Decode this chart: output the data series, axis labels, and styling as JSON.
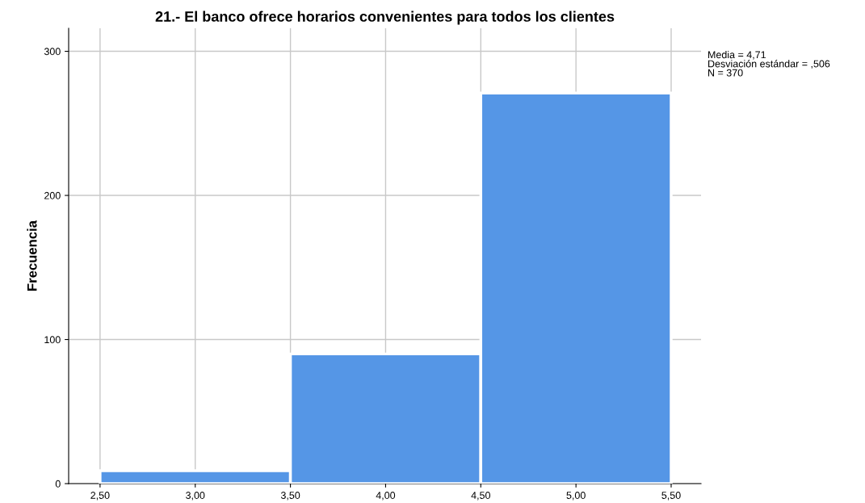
{
  "chart_data": {
    "type": "histogram",
    "title": "21.- El banco ofrece horarios convenientes para todos los clientes",
    "ylabel": "Frecuencia",
    "bins": [
      2.5,
      3.5,
      4.5,
      5.5
    ],
    "values": [
      9,
      90,
      271
    ],
    "color": "#5596e6",
    "xlim": [
      2.335,
      5.657
    ],
    "xticks": [
      {
        "value": 2.5,
        "label": "2,50"
      },
      {
        "value": 3.0,
        "label": "3,00"
      },
      {
        "value": 3.5,
        "label": "3,50"
      },
      {
        "value": 4.0,
        "label": "4,00"
      },
      {
        "value": 4.5,
        "label": "4,50"
      },
      {
        "value": 5.0,
        "label": "5,00"
      },
      {
        "value": 5.5,
        "label": "5,50"
      }
    ],
    "ylim": [
      0,
      316
    ],
    "yticks": [
      0,
      100,
      200,
      300
    ],
    "grid": true,
    "annotations": [
      "Media = 4,71\nDesviación estándar = ,506\nN = 370"
    ]
  }
}
